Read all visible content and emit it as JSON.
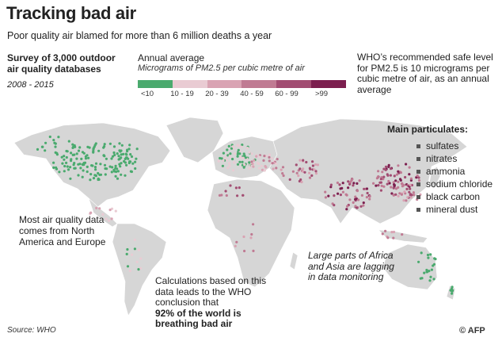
{
  "title": "Tracking bad air",
  "subtitle": "Poor quality air blamed for more than 6 million deaths a year",
  "survey": "Survey of 3,000 outdoor air quality databases",
  "years": "2008 - 2015",
  "legend": {
    "title": "Annual average",
    "subtitle": "Micrograms of PM2.5 per cubic metre of air",
    "bins": [
      {
        "label": "<10",
        "color": "#4aaa6e"
      },
      {
        "label": "10 - 19",
        "color": "#e9cbd3"
      },
      {
        "label": "20 - 39",
        "color": "#d9a3b3"
      },
      {
        "label": "40 - 59",
        "color": "#c07b93"
      },
      {
        "label": "60 - 99",
        "color": "#a24d72"
      },
      {
        "label": ">99",
        "color": "#7c1f4f"
      }
    ]
  },
  "who_note": "WHO’s recommended safe level for PM2.5 is 10 micrograms per cubic metre of air, as an annual average",
  "particulates": {
    "title": "Main  particulates:",
    "items": [
      "sulfates",
      "nitrates",
      "ammonia",
      "sodium chloride",
      "black carbon",
      "mineral dust"
    ]
  },
  "notes": {
    "north_america": "Most air quality data comes from North America and Europe",
    "africa_asia": "Large parts of Africa and Asia are lagging in data monitoring",
    "calc_a": "Calculations based on this data leads to the WHO conclusion that",
    "calc_b": "92% of the world is breathing bad air"
  },
  "source": "Source: WHO",
  "credit": "© AFP",
  "colors": {
    "land": "#d6d6d6",
    "text": "#222222"
  }
}
